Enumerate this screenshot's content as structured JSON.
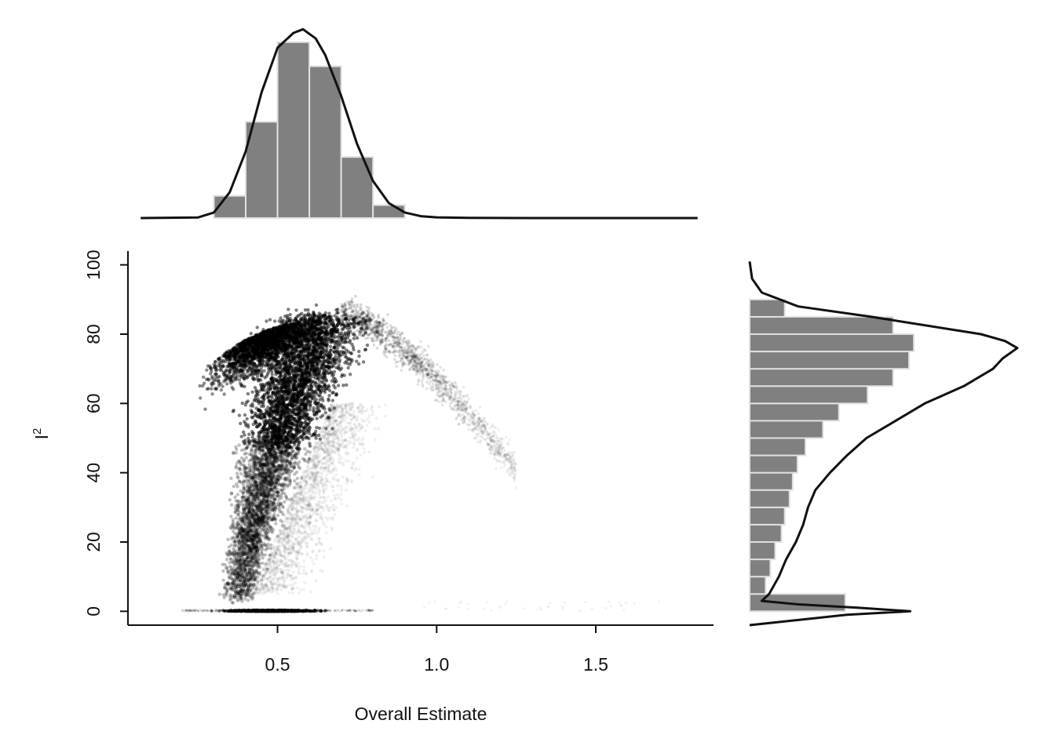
{
  "chart_data": [
    {
      "panel": "main-scatter",
      "type": "scatter",
      "xlabel": "Overall Estimate",
      "ylabel": "I",
      "ylabel_superscript": "2",
      "xlim": [
        0.03,
        1.87
      ],
      "ylim": [
        -4,
        104
      ],
      "x_ticks": [
        0.5,
        1.0,
        1.5
      ],
      "x_tick_labels": [
        "0.5",
        "1.0",
        "1.5"
      ],
      "y_ticks": [
        0,
        20,
        40,
        60,
        80,
        100
      ],
      "y_tick_labels": [
        "0",
        "20",
        "40",
        "60",
        "80",
        "100"
      ],
      "grid": false,
      "point_color": "#000000",
      "density_regions": [
        {
          "x_range": [
            0.22,
            0.75
          ],
          "y": 0,
          "description_weight": "dense band at I2 = 0"
        },
        {
          "x_range": [
            0.3,
            0.85
          ],
          "y_range": [
            5,
            88
          ],
          "description_weight": "dense arc"
        },
        {
          "x_range": [
            0.75,
            1.3
          ],
          "y_range": [
            40,
            82
          ],
          "description_weight": "sparse tail"
        }
      ]
    },
    {
      "panel": "top-marginal",
      "type": "bar",
      "bin_edges": [
        0.3,
        0.4,
        0.5,
        0.6,
        0.7,
        0.8,
        0.9
      ],
      "values": [
        0.12,
        0.52,
        0.95,
        0.82,
        0.33,
        0.07
      ],
      "density_curve": {
        "x": [
          0.07,
          0.25,
          0.3,
          0.35,
          0.4,
          0.45,
          0.5,
          0.55,
          0.58,
          0.62,
          0.65,
          0.7,
          0.75,
          0.8,
          0.85,
          0.9,
          0.95,
          1.0,
          1.1,
          1.3,
          1.6,
          1.82
        ],
        "y": [
          0,
          0.003,
          0.03,
          0.14,
          0.36,
          0.68,
          0.92,
          1.0,
          1.02,
          0.97,
          0.88,
          0.66,
          0.4,
          0.2,
          0.08,
          0.03,
          0.01,
          0.004,
          0.001,
          0,
          0,
          0
        ]
      },
      "bar_color": "#808080",
      "bar_edge_color": "#e0e0e0",
      "curve_color": "#111111"
    },
    {
      "panel": "right-marginal",
      "type": "bar",
      "orientation": "horizontal",
      "bin_edges": [
        0,
        5,
        10,
        15,
        20,
        25,
        30,
        35,
        40,
        45,
        50,
        55,
        60,
        65,
        70,
        75,
        80,
        85,
        90
      ],
      "values": [
        0.6,
        0.1,
        0.13,
        0.16,
        0.2,
        0.22,
        0.25,
        0.27,
        0.3,
        0.35,
        0.46,
        0.56,
        0.74,
        0.9,
        1.0,
        1.03,
        0.9,
        0.22
      ],
      "density_curve": {
        "y": [
          -4,
          -1,
          0,
          1,
          2,
          3,
          5,
          10,
          15,
          20,
          25,
          30,
          35,
          40,
          45,
          50,
          55,
          60,
          65,
          70,
          73,
          76,
          78,
          80,
          85,
          88,
          92,
          96,
          101
        ],
        "x": [
          0,
          0.4,
          0.66,
          0.45,
          0.2,
          0.05,
          0.08,
          0.12,
          0.15,
          0.19,
          0.22,
          0.24,
          0.27,
          0.33,
          0.4,
          0.48,
          0.6,
          0.72,
          0.88,
          1.0,
          1.04,
          1.1,
          1.05,
          0.95,
          0.5,
          0.2,
          0.05,
          0.01,
          0
        ]
      },
      "bar_color": "#808080",
      "bar_edge_color": "#e0e0e0",
      "curve_color": "#111111"
    }
  ]
}
